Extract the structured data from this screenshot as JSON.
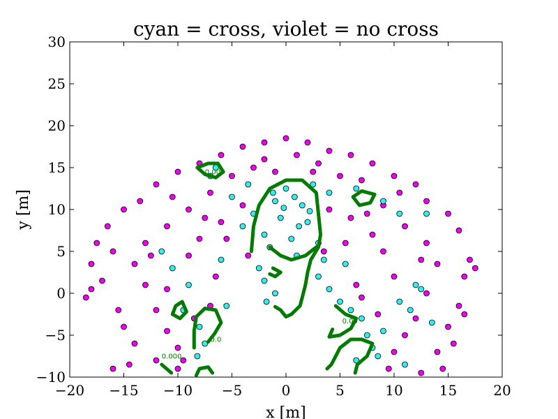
{
  "chart_data": {
    "type": "scatter",
    "title": "cyan = cross, violet = no cross",
    "xlabel": "x [m]",
    "ylabel": "y [m]",
    "xlim": [
      -20,
      20
    ],
    "ylim": [
      -10,
      30
    ],
    "xticks": [
      -20,
      -15,
      -10,
      -5,
      0,
      5,
      10,
      15,
      20
    ],
    "xtick_labels": [
      "−20",
      "−15",
      "−10",
      "−5",
      "0",
      "5",
      "10",
      "15",
      "20"
    ],
    "yticks": [
      -10,
      -5,
      0,
      5,
      10,
      15,
      20,
      25,
      30
    ],
    "ytick_labels": [
      "−10",
      "−5",
      "0",
      "5",
      "10",
      "15",
      "20",
      "25",
      "30"
    ],
    "grid": false,
    "colors": {
      "cross": "#33eeee",
      "no_cross": "#ee00ee",
      "marker_edge": "#000000",
      "contour": "#007a00"
    },
    "series": [
      {
        "key": "cross",
        "points": [
          [
            0.0,
            12.5
          ],
          [
            -1.0,
            11.0
          ],
          [
            1.5,
            10.5
          ],
          [
            -0.5,
            9.0
          ],
          [
            2.0,
            8.5
          ],
          [
            -2.0,
            7.0
          ],
          [
            0.5,
            6.5
          ],
          [
            -1.5,
            5.5
          ],
          [
            1.0,
            4.5
          ],
          [
            3.0,
            6.0
          ],
          [
            -2.5,
            3.0
          ],
          [
            -2.0,
            1.5
          ],
          [
            -1.0,
            0.0
          ],
          [
            -1.8,
            -1.0
          ],
          [
            3.0,
            2.0
          ],
          [
            4.0,
            0.5
          ],
          [
            5.0,
            -1.0
          ],
          [
            6.0,
            -2.0
          ],
          [
            7.0,
            -3.0
          ],
          [
            3.5,
            4.0
          ],
          [
            5.5,
            3.5
          ],
          [
            7.5,
            -5.0
          ],
          [
            8.0,
            -6.5
          ],
          [
            6.5,
            -8.0
          ],
          [
            8.5,
            -7.5
          ],
          [
            -8.0,
            -4.0
          ],
          [
            -7.5,
            -6.0
          ],
          [
            -8.2,
            -7.5
          ],
          [
            -7.0,
            14.0
          ],
          [
            -6.5,
            15.0
          ],
          [
            -9.5,
            -2.0
          ],
          [
            10.5,
            -1.0
          ],
          [
            11.5,
            -2.0
          ],
          [
            12.0,
            1.0
          ],
          [
            13.5,
            -3.5
          ],
          [
            12.5,
            0.5
          ],
          [
            11.0,
            -8.5
          ],
          [
            9.0,
            -4.5
          ],
          [
            -3.0,
            9.5
          ],
          [
            -4.0,
            8.0
          ],
          [
            -5.0,
            11.5
          ],
          [
            -3.5,
            13.0
          ],
          [
            2.5,
            13.0
          ],
          [
            4.0,
            12.0
          ],
          [
            6.5,
            12.5
          ],
          [
            9.0,
            11.0
          ],
          [
            10.5,
            9.5
          ],
          [
            -9.0,
            1.0
          ],
          [
            -6.0,
            4.0
          ],
          [
            -5.5,
            -1.5
          ],
          [
            -10.5,
            3.0
          ],
          [
            -11.5,
            5.0
          ],
          [
            13.0,
            9.5
          ],
          [
            -1.2,
            12.0
          ],
          [
            0.8,
            11.5
          ],
          [
            2.2,
            9.8
          ],
          [
            -0.2,
            10.2
          ],
          [
            1.2,
            8.0
          ]
        ]
      },
      {
        "key": "no_cross",
        "points": [
          [
            0.0,
            18.5
          ],
          [
            -2.0,
            18.0
          ],
          [
            2.0,
            18.0
          ],
          [
            -4.0,
            17.5
          ],
          [
            4.0,
            17.0
          ],
          [
            -6.0,
            16.5
          ],
          [
            6.0,
            16.5
          ],
          [
            -8.0,
            15.5
          ],
          [
            8.0,
            15.5
          ],
          [
            -10.0,
            14.5
          ],
          [
            10.0,
            14.0
          ],
          [
            -12.0,
            13.0
          ],
          [
            12.0,
            13.0
          ],
          [
            -13.5,
            11.0
          ],
          [
            13.0,
            11.0
          ],
          [
            -15.0,
            10.0
          ],
          [
            15.0,
            9.5
          ],
          [
            -16.5,
            8.0
          ],
          [
            16.0,
            7.5
          ],
          [
            -17.5,
            6.0
          ],
          [
            17.0,
            4.0
          ],
          [
            -18.0,
            3.5
          ],
          [
            17.5,
            3.0
          ],
          [
            -18.5,
            -0.5
          ],
          [
            16.0,
            -1.5
          ],
          [
            -12.0,
            -8.0
          ],
          [
            -10.0,
            -9.0
          ],
          [
            14.0,
            -7.0
          ],
          [
            12.5,
            -9.5
          ],
          [
            -15.0,
            -4.0
          ],
          [
            -14.0,
            -6.0
          ],
          [
            15.0,
            -4.0
          ],
          [
            -5.0,
            14.0
          ],
          [
            -3.0,
            15.0
          ],
          [
            3.0,
            15.5
          ],
          [
            5.0,
            14.0
          ],
          [
            7.0,
            13.5
          ],
          [
            -7.0,
            12.0
          ],
          [
            -9.0,
            10.0
          ],
          [
            9.0,
            10.5
          ],
          [
            -11.0,
            8.0
          ],
          [
            11.0,
            8.0
          ],
          [
            -13.0,
            6.0
          ],
          [
            13.0,
            6.0
          ],
          [
            -14.0,
            3.5
          ],
          [
            14.0,
            3.5
          ],
          [
            -13.0,
            1.0
          ],
          [
            13.0,
            0.0
          ],
          [
            -12.0,
            -2.0
          ],
          [
            12.0,
            -3.0
          ],
          [
            -11.0,
            -4.5
          ],
          [
            11.0,
            -5.0
          ],
          [
            -10.0,
            -6.5
          ],
          [
            10.0,
            -7.0
          ],
          [
            -9.0,
            4.5
          ],
          [
            9.0,
            5.0
          ],
          [
            -8.0,
            6.5
          ],
          [
            8.0,
            7.0
          ],
          [
            -6.0,
            8.5
          ],
          [
            6.0,
            9.0
          ],
          [
            -4.0,
            10.5
          ],
          [
            4.0,
            10.0
          ],
          [
            -2.0,
            16.0
          ],
          [
            1.0,
            16.5
          ],
          [
            -1.0,
            14.5
          ],
          [
            2.5,
            14.5
          ],
          [
            -7.5,
            9.0
          ],
          [
            7.5,
            9.5
          ],
          [
            -12.5,
            4.5
          ],
          [
            12.5,
            4.0
          ],
          [
            -11.0,
            0.5
          ],
          [
            10.0,
            2.0
          ],
          [
            -16.0,
            5.0
          ],
          [
            -17.0,
            1.5
          ],
          [
            16.5,
            2.0
          ],
          [
            15.5,
            -6.0
          ],
          [
            -15.5,
            -2.0
          ],
          [
            -14.5,
            -8.5
          ],
          [
            -10.5,
            11.5
          ],
          [
            10.5,
            12.0
          ],
          [
            -6.5,
            2.0
          ],
          [
            6.5,
            1.0
          ],
          [
            -7.0,
            -1.5
          ],
          [
            7.0,
            -0.5
          ],
          [
            -8.5,
            -3.0
          ],
          [
            8.5,
            -2.5
          ],
          [
            -9.5,
            -8.0
          ],
          [
            9.5,
            -9.0
          ],
          [
            -5.5,
            6.5
          ],
          [
            5.5,
            6.0
          ],
          [
            -3.5,
            4.5
          ],
          [
            3.5,
            5.0
          ],
          [
            -16.0,
            -9.0
          ],
          [
            14.5,
            -9.0
          ],
          [
            16.5,
            -2.5
          ],
          [
            -18.0,
            0.5
          ]
        ]
      }
    ],
    "contours": [
      {
        "label": "",
        "points": [
          [
            -3.2,
            5.0
          ],
          [
            -3.0,
            8.0
          ],
          [
            -2.5,
            10.5
          ],
          [
            -1.5,
            12.5
          ],
          [
            0.0,
            13.5
          ],
          [
            1.5,
            13.5
          ],
          [
            2.8,
            12.0
          ],
          [
            3.0,
            9.5
          ],
          [
            3.2,
            7.0
          ],
          [
            3.0,
            5.5
          ],
          [
            2.3,
            4.0
          ],
          [
            2.0,
            2.5
          ],
          [
            1.8,
            1.0
          ],
          [
            1.5,
            -0.5
          ],
          [
            1.3,
            -1.5
          ],
          [
            0.5,
            -2.5
          ],
          [
            0.0,
            -2.8
          ],
          [
            -0.5,
            -2.0
          ],
          [
            -1.0,
            -1.6
          ]
        ]
      },
      {
        "label": "",
        "points": [
          [
            -1.5,
            5.5
          ],
          [
            -0.5,
            4.5
          ],
          [
            0.5,
            4.0
          ],
          [
            1.8,
            4.5
          ],
          [
            2.8,
            5.5
          ]
        ]
      },
      {
        "label": "",
        "points": [
          [
            -1.2,
            3.0
          ],
          [
            -0.5,
            2.5
          ],
          [
            -1.0,
            2.0
          ],
          [
            -1.5,
            2.3
          ]
        ]
      },
      {
        "label": "",
        "points": [
          [
            -8.2,
            15.0
          ],
          [
            -7.5,
            14.2
          ],
          [
            -6.5,
            13.8
          ],
          [
            -5.8,
            14.5
          ],
          [
            -6.3,
            15.5
          ],
          [
            -7.2,
            15.5
          ],
          [
            -8.2,
            15.0
          ]
        ]
      },
      {
        "label": "",
        "points": [
          [
            6.2,
            11.5
          ],
          [
            7.0,
            12.2
          ],
          [
            8.2,
            11.8
          ],
          [
            7.8,
            10.8
          ],
          [
            6.8,
            10.5
          ],
          [
            6.2,
            11.5
          ]
        ]
      },
      {
        "label": "",
        "points": [
          [
            -10.5,
            -2.5
          ],
          [
            -10.2,
            -1.5
          ],
          [
            -9.6,
            -1.0
          ],
          [
            -9.2,
            -2.2
          ],
          [
            -9.8,
            -3.0
          ],
          [
            -10.5,
            -2.5
          ]
        ]
      },
      {
        "label": "",
        "points": [
          [
            -8.5,
            -6.5
          ],
          [
            -8.5,
            -4.5
          ],
          [
            -8.3,
            -2.8
          ],
          [
            -7.5,
            -1.8
          ],
          [
            -6.5,
            -2.0
          ],
          [
            -6.0,
            -3.5
          ],
          [
            -6.6,
            -4.8
          ],
          [
            -7.2,
            -5.8
          ]
        ]
      },
      {
        "label": "",
        "points": [
          [
            4.6,
            -1.5
          ],
          [
            5.5,
            -2.5
          ],
          [
            6.5,
            -3.0
          ],
          [
            6.0,
            -4.2
          ],
          [
            5.0,
            -5.0
          ],
          [
            4.0,
            -5.2
          ],
          [
            4.3,
            -4.3
          ]
        ]
      },
      {
        "label": "",
        "points": [
          [
            3.8,
            -9.0
          ],
          [
            4.2,
            -8.5
          ],
          [
            5.0,
            -6.5
          ],
          [
            6.0,
            -5.5
          ],
          [
            7.0,
            -5.5
          ],
          [
            8.0,
            -6.0
          ],
          [
            7.5,
            -7.5
          ],
          [
            6.6,
            -8.5
          ],
          [
            6.4,
            -9.5
          ]
        ]
      },
      {
        "label": "",
        "points": [
          [
            -11.5,
            -8.5
          ],
          [
            -10.6,
            -9.5
          ]
        ]
      },
      {
        "label": "",
        "points": [
          [
            -8.3,
            -9.8
          ],
          [
            -8.0,
            -9.0
          ],
          [
            -7.2,
            -8.8
          ],
          [
            -6.8,
            -9.5
          ]
        ]
      }
    ],
    "contour_labels": [
      {
        "text": "0.000",
        "x": -11.5,
        "y": -7.8
      },
      {
        "text": "0.0",
        "x": -7.0,
        "y": -5.8
      },
      {
        "text": "0.000",
        "x": -7.5,
        "y": 14.2
      },
      {
        "text": "0.00",
        "x": 5.2,
        "y": -3.6
      }
    ]
  }
}
